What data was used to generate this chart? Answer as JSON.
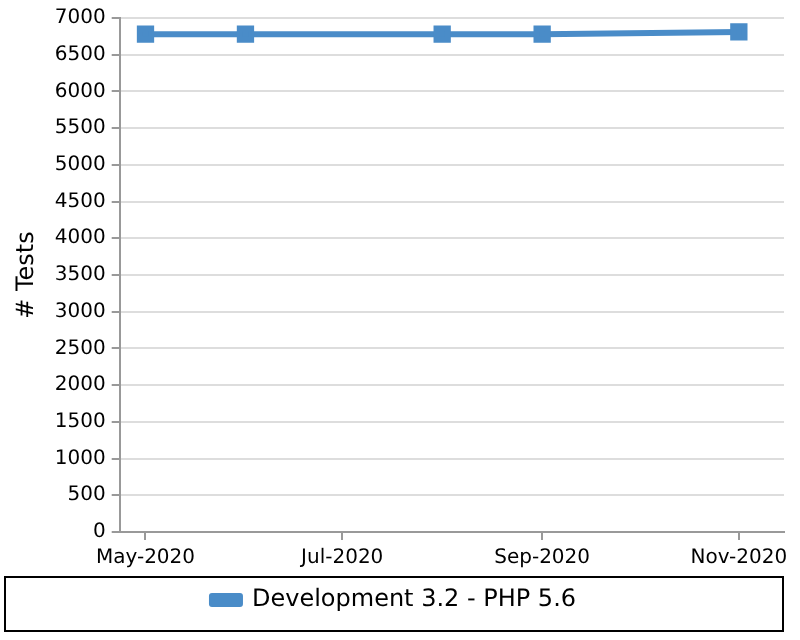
{
  "chart_data": {
    "type": "line",
    "ylabel": "# Tests",
    "x": [
      "2020-05-01",
      "2020-06-01",
      "2020-08-01",
      "2020-09-01",
      "2020-11-01"
    ],
    "series": [
      {
        "name": "Development 3.2 - PHP 5.6",
        "color": "#4a8cc8",
        "values": [
          6780,
          6780,
          6780,
          6780,
          6810
        ]
      }
    ],
    "xlim": [
      "2020-04-23",
      "2020-11-15"
    ],
    "xticks": [
      {
        "value": "2020-05-01",
        "label": "May-2020"
      },
      {
        "value": "2020-07-01",
        "label": "Jul-2020"
      },
      {
        "value": "2020-09-01",
        "label": "Sep-2020"
      },
      {
        "value": "2020-11-01",
        "label": "Nov-2020"
      }
    ],
    "ylim": [
      0,
      7000
    ],
    "yticks": [
      0,
      500,
      1000,
      1500,
      2000,
      2500,
      3000,
      3500,
      4000,
      4500,
      5000,
      5500,
      6000,
      6500,
      7000
    ],
    "grid": "y",
    "legend": "bottom",
    "marker": "square",
    "line_style": "solid"
  }
}
